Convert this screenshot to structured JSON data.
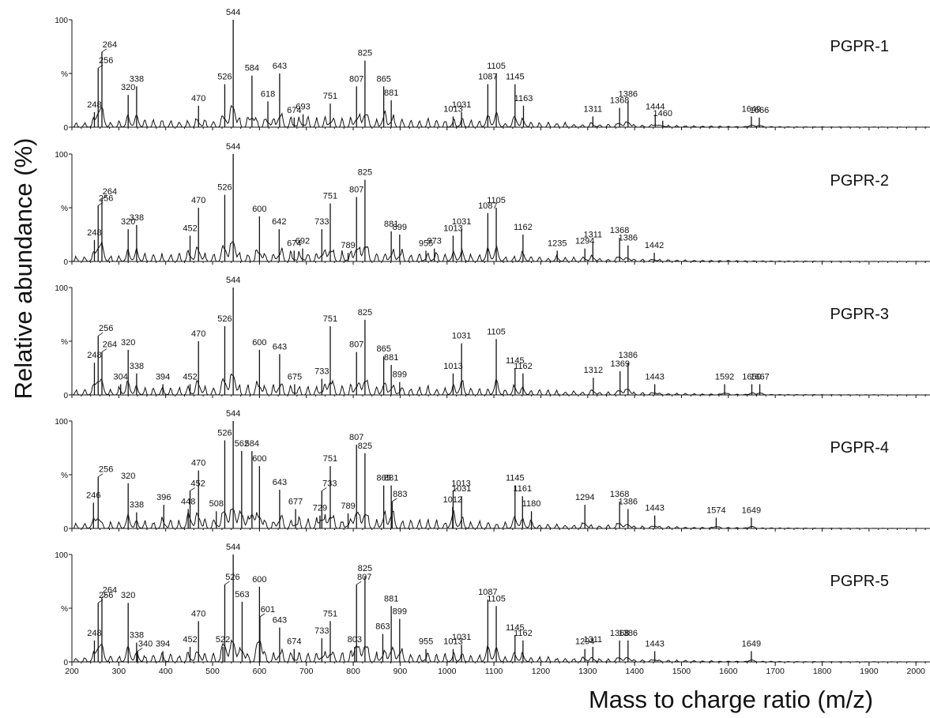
{
  "chart_data": {
    "type": "line",
    "xlabel": "Mass to charge ratio (m/z)",
    "ylabel": "Relative abundance (%)",
    "xlim": [
      200,
      2030
    ],
    "ylim": [
      0,
      100
    ],
    "x_ticks": [
      200,
      300,
      400,
      500,
      600,
      700,
      800,
      900,
      1000,
      1100,
      1200,
      1300,
      1400,
      1500,
      1600,
      1700,
      1800,
      1900,
      2000
    ],
    "y_ticks": [
      "0",
      "%",
      "100"
    ],
    "grid": false,
    "panels": [
      {
        "name": "PGPR-1",
        "peaks": [
          {
            "mz": 248,
            "value": 14,
            "label": "248"
          },
          {
            "mz": 256,
            "value": 55,
            "label": "256"
          },
          {
            "mz": 264,
            "value": 70,
            "label": "264"
          },
          {
            "mz": 320,
            "value": 30,
            "label": "320"
          },
          {
            "mz": 338,
            "value": 38,
            "label": "338"
          },
          {
            "mz": 470,
            "value": 20,
            "label": "470"
          },
          {
            "mz": 526,
            "value": 40,
            "label": "526"
          },
          {
            "mz": 544,
            "value": 100,
            "label": "544"
          },
          {
            "mz": 584,
            "value": 48,
            "label": "584"
          },
          {
            "mz": 618,
            "value": 24,
            "label": "618"
          },
          {
            "mz": 643,
            "value": 50,
            "label": "643"
          },
          {
            "mz": 674,
            "value": 9,
            "label": "674"
          },
          {
            "mz": 693,
            "value": 12,
            "label": "693"
          },
          {
            "mz": 751,
            "value": 22,
            "label": "751"
          },
          {
            "mz": 807,
            "value": 38,
            "label": "807"
          },
          {
            "mz": 825,
            "value": 62,
            "label": "825"
          },
          {
            "mz": 865,
            "value": 38,
            "label": "865"
          },
          {
            "mz": 881,
            "value": 25,
            "label": "881"
          },
          {
            "mz": 1013,
            "value": 10,
            "label": "1013"
          },
          {
            "mz": 1031,
            "value": 14,
            "label": "1031"
          },
          {
            "mz": 1087,
            "value": 40,
            "label": "1087"
          },
          {
            "mz": 1105,
            "value": 50,
            "label": "1105"
          },
          {
            "mz": 1145,
            "value": 40,
            "label": "1145"
          },
          {
            "mz": 1163,
            "value": 20,
            "label": "1163"
          },
          {
            "mz": 1311,
            "value": 10,
            "label": "1311"
          },
          {
            "mz": 1368,
            "value": 18,
            "label": "1368"
          },
          {
            "mz": 1386,
            "value": 24,
            "label": "1386"
          },
          {
            "mz": 1444,
            "value": 12,
            "label": "1444"
          },
          {
            "mz": 1460,
            "value": 6,
            "label": "1460"
          },
          {
            "mz": 1649,
            "value": 10,
            "label": "1649"
          },
          {
            "mz": 1666,
            "value": 9,
            "label": "1666"
          }
        ]
      },
      {
        "name": "PGPR-2",
        "peaks": [
          {
            "mz": 248,
            "value": 20,
            "label": "248"
          },
          {
            "mz": 256,
            "value": 52,
            "label": "256"
          },
          {
            "mz": 264,
            "value": 58,
            "label": "264"
          },
          {
            "mz": 320,
            "value": 30,
            "label": "320"
          },
          {
            "mz": 338,
            "value": 34,
            "label": "338"
          },
          {
            "mz": 452,
            "value": 24,
            "label": "452"
          },
          {
            "mz": 470,
            "value": 50,
            "label": "470"
          },
          {
            "mz": 526,
            "value": 62,
            "label": "526"
          },
          {
            "mz": 544,
            "value": 100,
            "label": "544"
          },
          {
            "mz": 600,
            "value": 42,
            "label": "600"
          },
          {
            "mz": 642,
            "value": 30,
            "label": "642"
          },
          {
            "mz": 674,
            "value": 10,
            "label": "674"
          },
          {
            "mz": 692,
            "value": 12,
            "label": "692"
          },
          {
            "mz": 733,
            "value": 30,
            "label": "733"
          },
          {
            "mz": 751,
            "value": 54,
            "label": "751"
          },
          {
            "mz": 789,
            "value": 8,
            "label": "789"
          },
          {
            "mz": 807,
            "value": 60,
            "label": "807"
          },
          {
            "mz": 825,
            "value": 76,
            "label": "825"
          },
          {
            "mz": 881,
            "value": 28,
            "label": "881"
          },
          {
            "mz": 899,
            "value": 25,
            "label": "899"
          },
          {
            "mz": 955,
            "value": 10,
            "label": "955"
          },
          {
            "mz": 973,
            "value": 12,
            "label": "973"
          },
          {
            "mz": 1013,
            "value": 24,
            "label": "1013"
          },
          {
            "mz": 1031,
            "value": 30,
            "label": "1031"
          },
          {
            "mz": 1087,
            "value": 45,
            "label": "1087"
          },
          {
            "mz": 1105,
            "value": 50,
            "label": "1105"
          },
          {
            "mz": 1162,
            "value": 25,
            "label": "1162"
          },
          {
            "mz": 1235,
            "value": 10,
            "label": "1235"
          },
          {
            "mz": 1294,
            "value": 12,
            "label": "1294"
          },
          {
            "mz": 1311,
            "value": 18,
            "label": "1311"
          },
          {
            "mz": 1368,
            "value": 22,
            "label": "1368"
          },
          {
            "mz": 1386,
            "value": 15,
            "label": "1386"
          },
          {
            "mz": 1442,
            "value": 8,
            "label": "1442"
          }
        ]
      },
      {
        "name": "PGPR-3",
        "peaks": [
          {
            "mz": 248,
            "value": 30,
            "label": "248"
          },
          {
            "mz": 256,
            "value": 55,
            "label": "256"
          },
          {
            "mz": 264,
            "value": 40,
            "label": "264"
          },
          {
            "mz": 304,
            "value": 10,
            "label": "304"
          },
          {
            "mz": 320,
            "value": 42,
            "label": "320"
          },
          {
            "mz": 338,
            "value": 20,
            "label": "338"
          },
          {
            "mz": 394,
            "value": 10,
            "label": "394"
          },
          {
            "mz": 452,
            "value": 10,
            "label": "452"
          },
          {
            "mz": 470,
            "value": 50,
            "label": "470"
          },
          {
            "mz": 526,
            "value": 64,
            "label": "526"
          },
          {
            "mz": 544,
            "value": 100,
            "label": "544"
          },
          {
            "mz": 600,
            "value": 42,
            "label": "600"
          },
          {
            "mz": 643,
            "value": 38,
            "label": "643"
          },
          {
            "mz": 675,
            "value": 10,
            "label": "675"
          },
          {
            "mz": 733,
            "value": 15,
            "label": "733"
          },
          {
            "mz": 751,
            "value": 64,
            "label": "751"
          },
          {
            "mz": 807,
            "value": 40,
            "label": "807"
          },
          {
            "mz": 825,
            "value": 70,
            "label": "825"
          },
          {
            "mz": 865,
            "value": 36,
            "label": "865"
          },
          {
            "mz": 881,
            "value": 28,
            "label": "881"
          },
          {
            "mz": 899,
            "value": 12,
            "label": "899"
          },
          {
            "mz": 1013,
            "value": 20,
            "label": "1013"
          },
          {
            "mz": 1031,
            "value": 48,
            "label": "1031"
          },
          {
            "mz": 1105,
            "value": 52,
            "label": "1105"
          },
          {
            "mz": 1145,
            "value": 25,
            "label": "1145"
          },
          {
            "mz": 1162,
            "value": 20,
            "label": "1162"
          },
          {
            "mz": 1312,
            "value": 16,
            "label": "1312"
          },
          {
            "mz": 1369,
            "value": 22,
            "label": "1369"
          },
          {
            "mz": 1386,
            "value": 30,
            "label": "1386"
          },
          {
            "mz": 1443,
            "value": 10,
            "label": "1443"
          },
          {
            "mz": 1592,
            "value": 10,
            "label": "1592"
          },
          {
            "mz": 1650,
            "value": 10,
            "label": "1650"
          },
          {
            "mz": 1667,
            "value": 10,
            "label": "1667"
          }
        ]
      },
      {
        "name": "PGPR-4",
        "peaks": [
          {
            "mz": 246,
            "value": 24,
            "label": "246"
          },
          {
            "mz": 256,
            "value": 48,
            "label": "256"
          },
          {
            "mz": 320,
            "value": 42,
            "label": "320"
          },
          {
            "mz": 338,
            "value": 15,
            "label": "338"
          },
          {
            "mz": 396,
            "value": 22,
            "label": "396"
          },
          {
            "mz": 448,
            "value": 18,
            "label": "448"
          },
          {
            "mz": 452,
            "value": 35,
            "label": "452"
          },
          {
            "mz": 470,
            "value": 54,
            "label": "470"
          },
          {
            "mz": 508,
            "value": 16,
            "label": "508"
          },
          {
            "mz": 526,
            "value": 82,
            "label": "526"
          },
          {
            "mz": 544,
            "value": 100,
            "label": "544"
          },
          {
            "mz": 562,
            "value": 72,
            "label": "562"
          },
          {
            "mz": 584,
            "value": 72,
            "label": "584"
          },
          {
            "mz": 600,
            "value": 58,
            "label": "600"
          },
          {
            "mz": 643,
            "value": 36,
            "label": "643"
          },
          {
            "mz": 677,
            "value": 18,
            "label": "677"
          },
          {
            "mz": 729,
            "value": 12,
            "label": "729"
          },
          {
            "mz": 733,
            "value": 35,
            "label": "733"
          },
          {
            "mz": 751,
            "value": 58,
            "label": "751"
          },
          {
            "mz": 789,
            "value": 14,
            "label": "789"
          },
          {
            "mz": 807,
            "value": 78,
            "label": "807"
          },
          {
            "mz": 825,
            "value": 70,
            "label": "825"
          },
          {
            "mz": 865,
            "value": 40,
            "label": "865"
          },
          {
            "mz": 881,
            "value": 40,
            "label": "881"
          },
          {
            "mz": 883,
            "value": 25,
            "label": "883"
          },
          {
            "mz": 1012,
            "value": 20,
            "label": "1012"
          },
          {
            "mz": 1013,
            "value": 35,
            "label": "1013"
          },
          {
            "mz": 1031,
            "value": 30,
            "label": "1031"
          },
          {
            "mz": 1145,
            "value": 40,
            "label": "1145"
          },
          {
            "mz": 1161,
            "value": 30,
            "label": "1161"
          },
          {
            "mz": 1180,
            "value": 16,
            "label": "1180"
          },
          {
            "mz": 1294,
            "value": 22,
            "label": "1294"
          },
          {
            "mz": 1368,
            "value": 25,
            "label": "1368"
          },
          {
            "mz": 1386,
            "value": 18,
            "label": "1386"
          },
          {
            "mz": 1443,
            "value": 12,
            "label": "1443"
          },
          {
            "mz": 1574,
            "value": 10,
            "label": "1574"
          },
          {
            "mz": 1649,
            "value": 10,
            "label": "1649"
          }
        ]
      },
      {
        "name": "PGPR-5",
        "peaks": [
          {
            "mz": 248,
            "value": 20,
            "label": "248"
          },
          {
            "mz": 256,
            "value": 55,
            "label": "256"
          },
          {
            "mz": 264,
            "value": 60,
            "label": "264"
          },
          {
            "mz": 320,
            "value": 55,
            "label": "320"
          },
          {
            "mz": 338,
            "value": 18,
            "label": "338"
          },
          {
            "mz": 340,
            "value": 10,
            "label": "340"
          },
          {
            "mz": 394,
            "value": 10,
            "label": "394"
          },
          {
            "mz": 452,
            "value": 14,
            "label": "452"
          },
          {
            "mz": 470,
            "value": 38,
            "label": "470"
          },
          {
            "mz": 522,
            "value": 14,
            "label": "522"
          },
          {
            "mz": 526,
            "value": 72,
            "label": "526"
          },
          {
            "mz": 544,
            "value": 100,
            "label": "544"
          },
          {
            "mz": 563,
            "value": 56,
            "label": "563"
          },
          {
            "mz": 600,
            "value": 70,
            "label": "600"
          },
          {
            "mz": 601,
            "value": 42,
            "label": "601"
          },
          {
            "mz": 643,
            "value": 32,
            "label": "643"
          },
          {
            "mz": 674,
            "value": 12,
            "label": "674"
          },
          {
            "mz": 733,
            "value": 22,
            "label": "733"
          },
          {
            "mz": 751,
            "value": 38,
            "label": "751"
          },
          {
            "mz": 803,
            "value": 14,
            "label": "803"
          },
          {
            "mz": 807,
            "value": 72,
            "label": "807"
          },
          {
            "mz": 825,
            "value": 80,
            "label": "825"
          },
          {
            "mz": 863,
            "value": 26,
            "label": "863"
          },
          {
            "mz": 881,
            "value": 52,
            "label": "881"
          },
          {
            "mz": 899,
            "value": 40,
            "label": "899"
          },
          {
            "mz": 955,
            "value": 12,
            "label": "955"
          },
          {
            "mz": 1013,
            "value": 12,
            "label": "1013"
          },
          {
            "mz": 1031,
            "value": 16,
            "label": "1031"
          },
          {
            "mz": 1087,
            "value": 58,
            "label": "1087"
          },
          {
            "mz": 1105,
            "value": 52,
            "label": "1105"
          },
          {
            "mz": 1145,
            "value": 25,
            "label": "1145"
          },
          {
            "mz": 1162,
            "value": 20,
            "label": "1162"
          },
          {
            "mz": 1294,
            "value": 12,
            "label": "1294"
          },
          {
            "mz": 1311,
            "value": 14,
            "label": "1311"
          },
          {
            "mz": 1368,
            "value": 20,
            "label": "1368"
          },
          {
            "mz": 1386,
            "value": 20,
            "label": "1386"
          },
          {
            "mz": 1443,
            "value": 10,
            "label": "1443"
          },
          {
            "mz": 1649,
            "value": 10,
            "label": "1649"
          }
        ]
      }
    ]
  }
}
